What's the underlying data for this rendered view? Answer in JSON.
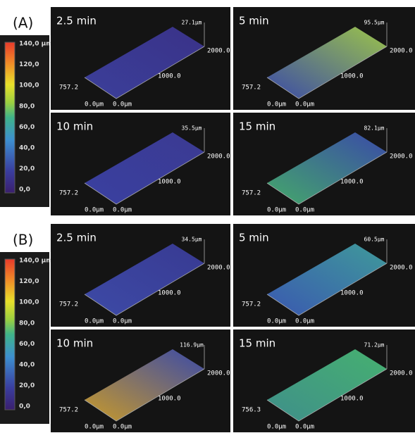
{
  "panels": [
    {
      "label": "(A)",
      "colorbar": [
        "140,0 µm",
        "120,0",
        "100,0",
        "80,0",
        "60,0",
        "40,0",
        "20,0",
        "0,0"
      ],
      "plots": [
        {
          "time": "2.5 min",
          "zmax": "27.1µm",
          "x_end": "2000.0",
          "x_mid": "1000.0",
          "y_end": "757.2",
          "z_origin": "0.0µm",
          "x_origin": "0.0µm"
        },
        {
          "time": "5 min",
          "zmax": "95.5µm",
          "x_end": "2000.0",
          "x_mid": "1000.0",
          "y_end": "757.2",
          "z_origin": "0.0µm",
          "x_origin": "0.0µm"
        },
        {
          "time": "10 min",
          "zmax": "35.5µm",
          "x_end": "2000.0",
          "x_mid": "1000.0",
          "y_end": "757.2",
          "z_origin": "0.0µm",
          "x_origin": "0.0µm"
        },
        {
          "time": "15 min",
          "zmax": "82.1µm",
          "x_end": "2000.0",
          "x_mid": "1000.0",
          "y_end": "757.2",
          "z_origin": "0.0µm",
          "x_origin": "0.0µm"
        }
      ]
    },
    {
      "label": "(B)",
      "colorbar": [
        "140,0 µm",
        "120,0",
        "100,0",
        "80,0",
        "60,0",
        "40,0",
        "20,0",
        "0,0"
      ],
      "plots": [
        {
          "time": "2.5 min",
          "zmax": "34.5µm",
          "x_end": "2000.0",
          "x_mid": "1000.0",
          "y_end": "757.2",
          "z_origin": "0.0µm",
          "x_origin": "0.0µm"
        },
        {
          "time": "5 min",
          "zmax": "60.5µm",
          "x_end": "2000.0",
          "x_mid": "1000.0",
          "y_end": "757.2",
          "z_origin": "0.0µm",
          "x_origin": "0.0µm"
        },
        {
          "time": "10 min",
          "zmax": "116.9µm",
          "x_end": "2000.0",
          "x_mid": "1000.0",
          "y_end": "757.2",
          "z_origin": "0.0µm",
          "x_origin": "0.0µm"
        },
        {
          "time": "15 min",
          "zmax": "71.2µm",
          "x_end": "2000.0",
          "x_mid": "1000.0",
          "y_end": "756.3",
          "z_origin": "0.0µm",
          "x_origin": "0.0µm"
        }
      ]
    }
  ]
}
